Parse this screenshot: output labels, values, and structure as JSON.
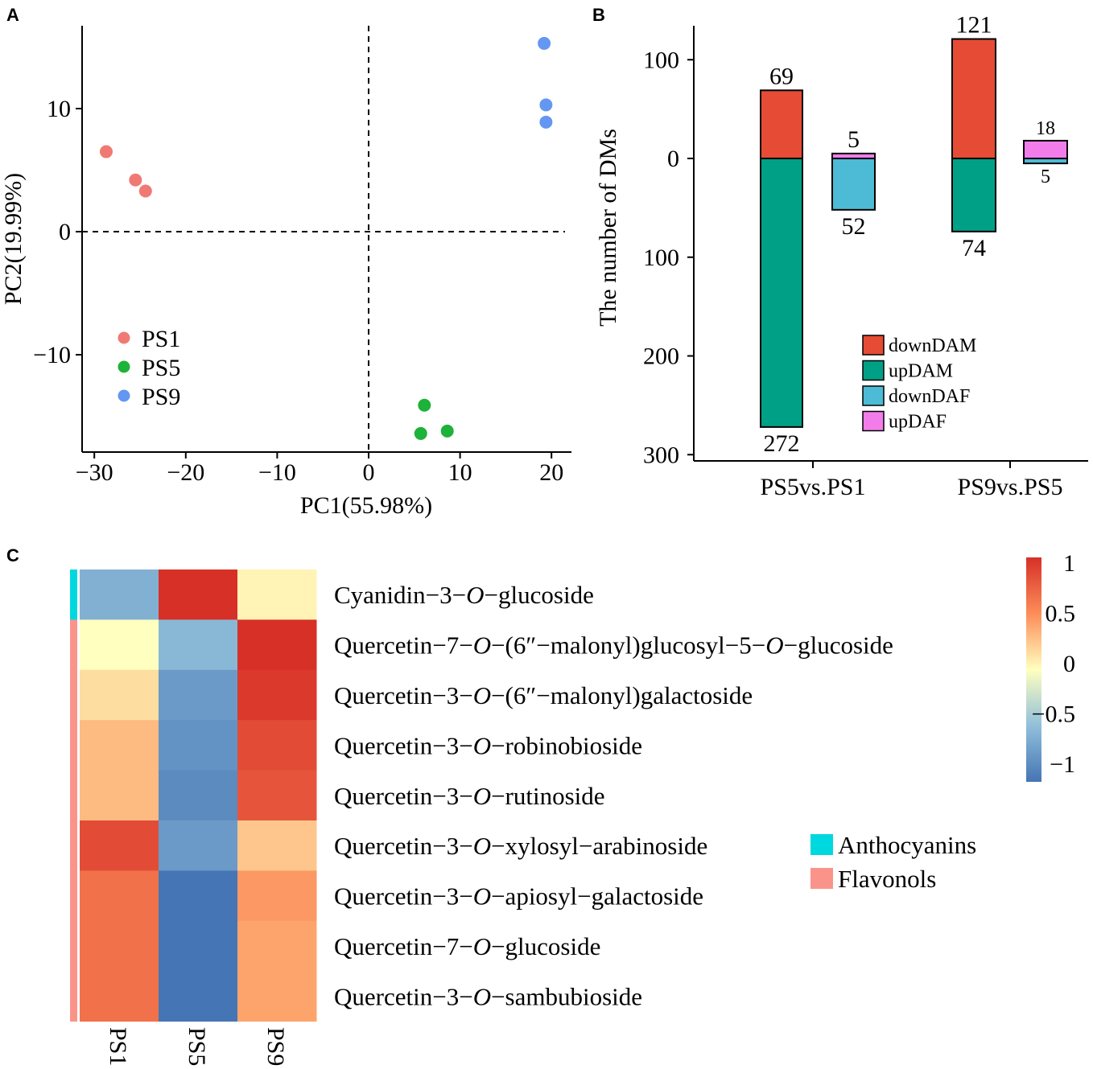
{
  "panels": {
    "a": "A",
    "b": "B",
    "c": "C"
  },
  "chart_data": [
    {
      "type": "scatter",
      "panel": "A",
      "xlabel": "PC1(55.98%)",
      "ylabel": "PC2(19.99%)",
      "xlim": [
        -32,
        22
      ],
      "ylim": [
        -17.5,
        16.8
      ],
      "xticks": [
        -30,
        -20,
        -10,
        0,
        10,
        20
      ],
      "xtick_labels": [
        "−30",
        "−20",
        "−10",
        "0",
        "10",
        "20"
      ],
      "yticks": [
        10,
        0,
        -10
      ],
      "ytick_labels": [
        "10",
        "0",
        "−10"
      ],
      "reference_lines": {
        "x": 0,
        "y": 0,
        "style": "dashed"
      },
      "legend_position": "bottom-left",
      "series": [
        {
          "name": "PS1",
          "color": "#F07A73",
          "points": [
            [
              -28.7,
              6.5
            ],
            [
              -25.5,
              4.2
            ],
            [
              -24.4,
              3.3
            ]
          ]
        },
        {
          "name": "PS5",
          "color": "#1DB239",
          "points": [
            [
              6.1,
              -14.1
            ],
            [
              8.6,
              -16.2
            ],
            [
              5.7,
              -16.4
            ]
          ]
        },
        {
          "name": "PS9",
          "color": "#6497F1",
          "points": [
            [
              19.2,
              15.3
            ],
            [
              19.4,
              10.3
            ],
            [
              19.4,
              8.9
            ]
          ]
        }
      ]
    },
    {
      "type": "bar",
      "panel": "B",
      "ylabel": "The number of DMs",
      "ylim": [
        -300,
        125
      ],
      "yticks": [
        100,
        0,
        -100,
        -200,
        -300
      ],
      "ytick_labels": [
        "100",
        "0",
        "100",
        "200",
        "300"
      ],
      "categories": [
        "PS5vs.PS1",
        "PS9vs.PS5"
      ],
      "legend_position": "right",
      "series": [
        {
          "name": "downDAM",
          "color": "#E54B35",
          "values": [
            69,
            121
          ]
        },
        {
          "name": "upDAM",
          "color": "#00A087",
          "values": [
            -272,
            -74
          ]
        },
        {
          "name": "downDAF",
          "color": "#4DBBD5",
          "values": [
            -52,
            -5
          ]
        },
        {
          "name": "upDAF",
          "color": "#F27DEA",
          "values": [
            5,
            18
          ]
        }
      ],
      "data_labels": {
        "dam_top": [
          "69",
          "121"
        ],
        "dam_bottom": [
          "272",
          "74"
        ],
        "daf_top": [
          "5",
          "18"
        ],
        "daf_bottom": [
          "52",
          "5"
        ]
      }
    },
    {
      "type": "heatmap",
      "panel": "C",
      "columns": [
        "PS1",
        "PS5",
        "PS9"
      ],
      "rows": [
        {
          "prefix": "Cyanidin−3−",
          "italic": "O",
          "suffix": "−glucoside",
          "group": "Anthocyanins",
          "values": [
            -0.6,
            1.0,
            0.05
          ]
        },
        {
          "prefix": "Quercetin−7−",
          "italic": "O",
          "suffix": "−(6″−malonyl)glucosyl−5−",
          "italic2": "O",
          "suffix2": "−glucoside",
          "group": "Flavonols",
          "values": [
            0.0,
            -0.55,
            1.0
          ]
        },
        {
          "prefix": "Quercetin−3−",
          "italic": "O",
          "suffix": "−(6″−malonyl)galactoside",
          "group": "Flavonols",
          "values": [
            0.15,
            -0.75,
            0.95
          ]
        },
        {
          "prefix": "Quercetin−3−",
          "italic": "O",
          "suffix": "−robinobioside",
          "group": "Flavonols",
          "values": [
            0.3,
            -0.8,
            0.85
          ]
        },
        {
          "prefix": "Quercetin−3−",
          "italic": "O",
          "suffix": "−rutinoside",
          "group": "Flavonols",
          "values": [
            0.3,
            -0.85,
            0.8
          ]
        },
        {
          "prefix": "Quercetin−3−",
          "italic": "O",
          "suffix": "−xylosyl−arabinoside",
          "group": "Flavonols",
          "values": [
            0.85,
            -0.75,
            0.25
          ]
        },
        {
          "prefix": "Quercetin−3−",
          "italic": "O",
          "suffix": "−apiosyl−galactoside",
          "group": "Flavonols",
          "values": [
            0.65,
            -1.0,
            0.45
          ]
        },
        {
          "prefix": "Quercetin−7−",
          "italic": "O",
          "suffix": "−glucoside",
          "group": "Flavonols",
          "values": [
            0.65,
            -1.0,
            0.4
          ]
        },
        {
          "prefix": "Quercetin−3−",
          "italic": "O",
          "suffix": "−sambubioside",
          "group": "Flavonols",
          "values": [
            0.65,
            -1.0,
            0.4
          ]
        }
      ],
      "color_scale": {
        "range": [
          -1,
          1
        ],
        "ticks": [
          1,
          0.5,
          0,
          -0.5,
          -1
        ],
        "tick_labels": [
          "1",
          "0.5",
          "0",
          "−0.5",
          "−1"
        ],
        "stops": [
          {
            "value": -1.0,
            "color": "#4575B4"
          },
          {
            "value": -0.5,
            "color": "#91BFDB"
          },
          {
            "value": 0.0,
            "color": "#FFFFBF"
          },
          {
            "value": 0.5,
            "color": "#FC8D59"
          },
          {
            "value": 1.0,
            "color": "#D73027"
          }
        ]
      },
      "groups": [
        {
          "name": "Anthocyanins",
          "color": "#00D8E0"
        },
        {
          "name": "Flavonols",
          "color": "#FA948A"
        }
      ]
    }
  ]
}
